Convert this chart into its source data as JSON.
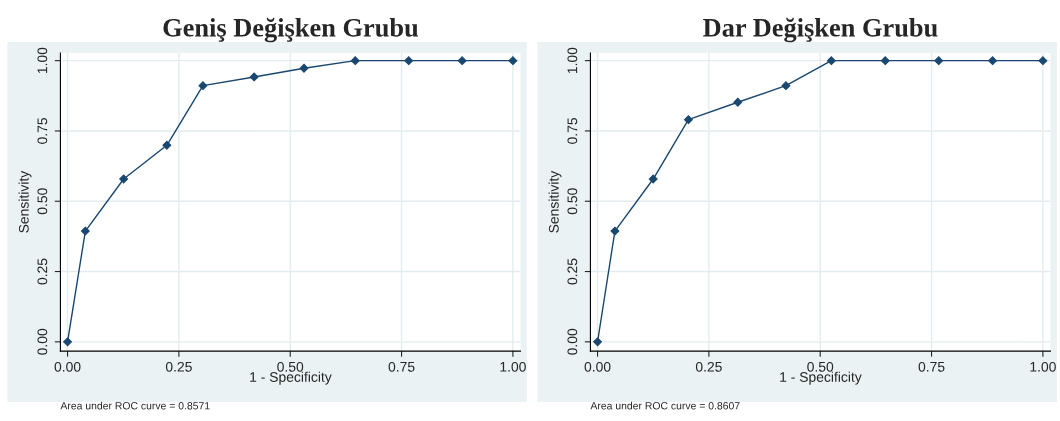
{
  "chart_data": [
    {
      "type": "line",
      "title": "Geniş Değişken Grubu",
      "xlabel": "1 - Specificity",
      "ylabel": "Sensitivity",
      "annotations": [
        "Area under ROC curve = 0.8571"
      ],
      "series": [
        {
          "color": "#1a476f",
          "x": [
            0,
            0.04,
            0.126,
            0.223,
            0.304,
            0.419,
            0.531,
            0.646,
            0.766,
            0.886,
            1
          ],
          "values": [
            0,
            0.394,
            0.579,
            0.699,
            0.911,
            0.942,
            0.973,
            1,
            1,
            1,
            1
          ]
        }
      ],
      "xlim": [
        -0.016,
        1.017
      ],
      "ylim": [
        -0.033,
        1.027
      ],
      "xticks": [
        {
          "value": 0,
          "label": "0.00"
        },
        {
          "value": 0.25,
          "label": "0.25"
        },
        {
          "value": 0.5,
          "label": "0.50"
        },
        {
          "value": 0.75,
          "label": "0.75"
        },
        {
          "value": 1,
          "label": "1.00"
        }
      ],
      "yticks": [
        {
          "value": 0,
          "label": "0.00"
        },
        {
          "value": 0.25,
          "label": "0.25"
        },
        {
          "value": 0.5,
          "label": "0.50"
        },
        {
          "value": 0.75,
          "label": "0.75"
        },
        {
          "value": 1,
          "label": "1.00"
        }
      ],
      "grid": true,
      "marker": "diamond",
      "line_style": "solid"
    },
    {
      "type": "line",
      "title": "Dar Değişken Grubu",
      "xlabel": "1 - Specificity",
      "ylabel": "Sensitivity",
      "annotations": [
        "Area under ROC curve = 0.8607"
      ],
      "series": [
        {
          "color": "#1a476f",
          "x": [
            0,
            0.039,
            0.125,
            0.204,
            0.315,
            0.423,
            0.525,
            0.646,
            0.766,
            0.887,
            1
          ],
          "values": [
            0,
            0.394,
            0.579,
            0.79,
            0.852,
            0.911,
            1,
            1,
            1,
            1,
            1
          ]
        }
      ],
      "xlim": [
        -0.016,
        1.017
      ],
      "ylim": [
        -0.033,
        1.027
      ],
      "xticks": [
        {
          "value": 0,
          "label": "0.00"
        },
        {
          "value": 0.25,
          "label": "0.25"
        },
        {
          "value": 0.5,
          "label": "0.50"
        },
        {
          "value": 0.75,
          "label": "0.75"
        },
        {
          "value": 1,
          "label": "1.00"
        }
      ],
      "yticks": [
        {
          "value": 0,
          "label": "0.00"
        },
        {
          "value": 0.25,
          "label": "0.25"
        },
        {
          "value": 0.5,
          "label": "0.50"
        },
        {
          "value": 0.75,
          "label": "0.75"
        },
        {
          "value": 1,
          "label": "1.00"
        }
      ],
      "grid": true,
      "marker": "diamond",
      "line_style": "solid"
    }
  ]
}
